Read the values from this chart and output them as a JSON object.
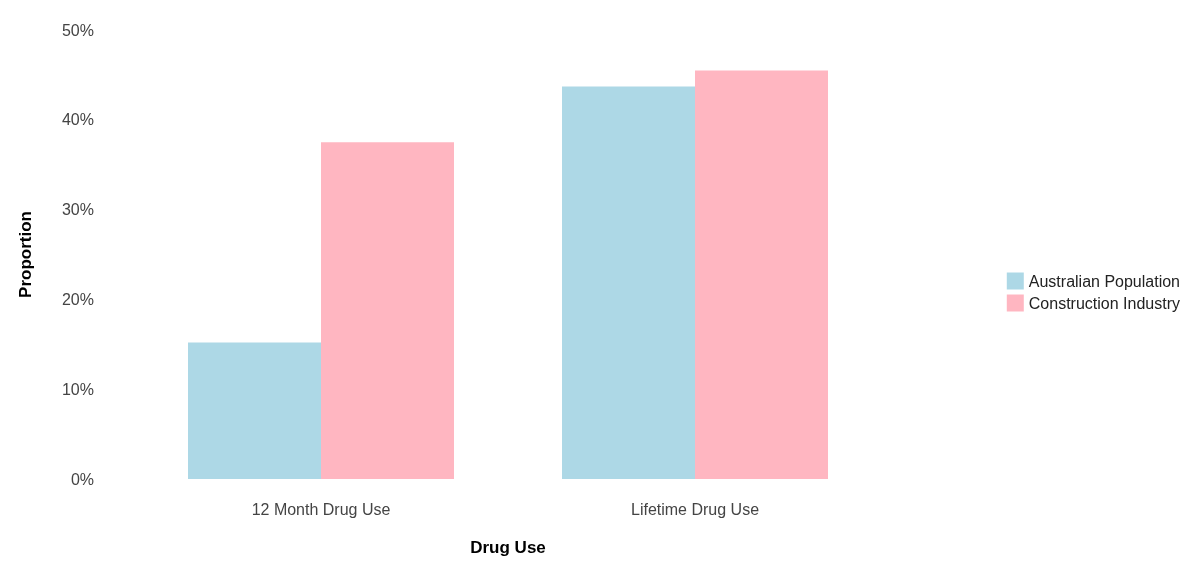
{
  "chart_data": {
    "type": "bar",
    "xlabel": "Drug Use",
    "ylabel": "Proportion",
    "categories": [
      "12 Month Drug Use",
      "Lifetime Drug Use"
    ],
    "series": [
      {
        "name": "Australian Population",
        "color": "#add8e6",
        "values": [
          15.2,
          43.7
        ]
      },
      {
        "name": "Construction Industry",
        "color": "#ffb6c1",
        "values": [
          37.5,
          45.5
        ]
      }
    ],
    "ylim": [
      0,
      50
    ],
    "yticks": [
      {
        "value": 0,
        "label": "0%"
      },
      {
        "value": 10,
        "label": "10%"
      },
      {
        "value": 20,
        "label": "20%"
      },
      {
        "value": 30,
        "label": "30%"
      },
      {
        "value": 40,
        "label": "40%"
      },
      {
        "value": 50,
        "label": "50%"
      }
    ],
    "grid": false,
    "legend": "right"
  }
}
